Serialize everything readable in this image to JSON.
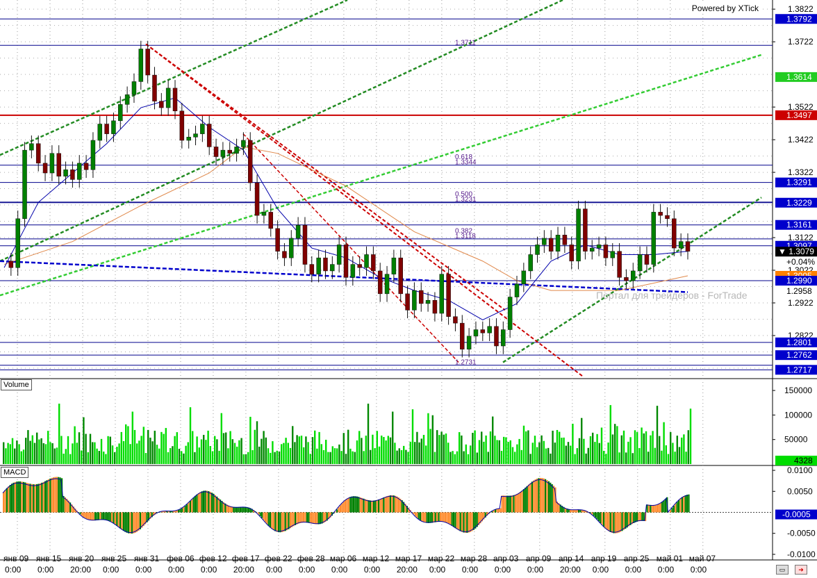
{
  "header": {
    "powered_by": "Powered by XTick",
    "watermark": "Портал для трейдеров - ForTrade"
  },
  "panes": {
    "volume_label": "Volume",
    "macd_label": "MACD"
  },
  "price_axis": {
    "ticks": [
      "1.3822",
      "1.3722",
      "1.3522",
      "1.3422",
      "1.3322",
      "1.3122",
      "1.3022",
      "1.2922",
      "1.2822"
    ],
    "tags": [
      {
        "label": "1.3792",
        "price": 1.3792,
        "kind": "blue"
      },
      {
        "label": "1.3614",
        "price": 1.3614,
        "kind": "green"
      },
      {
        "label": "1.3497",
        "price": 1.3497,
        "kind": "red"
      },
      {
        "label": "1.3291",
        "price": 1.3291,
        "kind": "blue"
      },
      {
        "label": "1.3229",
        "price": 1.3229,
        "kind": "blue"
      },
      {
        "label": "1.3161",
        "price": 1.3161,
        "kind": "blue"
      },
      {
        "label": "1.3097",
        "price": 1.3097,
        "kind": "blue"
      },
      {
        "label": "▼ 1.3079",
        "price": 1.3079,
        "kind": "current"
      },
      {
        "label": "+0.04%",
        "price": 1.3048,
        "kind": "plain"
      },
      {
        "label": "1.3005",
        "price": 1.3005,
        "kind": "orange"
      },
      {
        "label": "1.2990",
        "price": 1.299,
        "kind": "blue"
      },
      {
        "label": "1.2958",
        "price": 1.2958,
        "kind": "plain"
      },
      {
        "label": "1.2801",
        "price": 1.2801,
        "kind": "blue"
      },
      {
        "label": "1.2762",
        "price": 1.2762,
        "kind": "blue"
      },
      {
        "label": "1.2717",
        "price": 1.2717,
        "kind": "blue"
      }
    ]
  },
  "level_annotations": [
    {
      "text": "1.3711",
      "price": 1.3711
    },
    {
      "text": "0.618",
      "price": 1.336
    },
    {
      "text": "1.3344",
      "price": 1.3344
    },
    {
      "text": "0.500",
      "price": 1.3247
    },
    {
      "text": "1.3231",
      "price": 1.3231
    },
    {
      "text": "0.382",
      "price": 1.3134
    },
    {
      "text": "1.3118",
      "price": 1.3118
    },
    {
      "text": "1.2731",
      "price": 1.2731
    }
  ],
  "volume_axis": {
    "ticks": [
      "150000",
      "100000",
      "50000"
    ],
    "last": "4328"
  },
  "macd_axis": {
    "ticks": [
      "0.0100",
      "0.0050",
      "-0.0050",
      "-0.0100"
    ],
    "last": "-0.0005"
  },
  "time_axis": {
    "dates": [
      "янв 09",
      "янв 15",
      "янв 20",
      "янв 25",
      "янв 31",
      "фев 06",
      "фев 12",
      "фев 17",
      "фев 22",
      "фев 28",
      "мар 06",
      "мар 12",
      "мар 17",
      "мар 22",
      "мар 28",
      "апр 03",
      "апр 09",
      "апр 14",
      "апр 19",
      "апр 25",
      "май 01",
      "май 07"
    ],
    "times": [
      "0:00",
      "0:00",
      "20:00",
      "0:00",
      "0:00",
      "0:00",
      "0:00",
      "20:00",
      "0:00",
      "0:00",
      "0:00",
      "0:00",
      "20:00",
      "0:00",
      "0:00",
      "0:00",
      "0:00",
      "20:00",
      "0:00",
      "0:00",
      "0:00",
      "0:00"
    ]
  },
  "colors": {
    "up": "#008000",
    "down": "#800000",
    "hline": "#00008b",
    "redline": "#cc0000",
    "tag_blue": "#0000cc",
    "tag_green": "#22cc22",
    "tag_red": "#cc0000",
    "tag_orange": "#ff8000",
    "vol_green": "#00dd00",
    "vol_dark": "#008800",
    "macd_green": "#008000",
    "macd_orange": "#ff8c2e"
  },
  "chart_data": {
    "type": "candlestick",
    "instrument_quote_precision": 4,
    "y_range": [
      1.269,
      1.385
    ],
    "horizontal_levels": [
      1.3792,
      1.3711,
      1.3497,
      1.3344,
      1.3291,
      1.3231,
      1.3229,
      1.3161,
      1.3118,
      1.3097,
      1.299,
      1.2801,
      1.2762,
      1.2731,
      1.2717
    ],
    "close_path": [
      [
        0,
        1.305
      ],
      [
        1,
        1.303
      ],
      [
        2,
        1.318
      ],
      [
        3,
        1.339
      ],
      [
        4,
        1.341
      ],
      [
        5,
        1.335
      ],
      [
        6,
        1.332
      ],
      [
        7,
        1.338
      ],
      [
        8,
        1.331
      ],
      [
        9,
        1.333
      ],
      [
        10,
        1.33
      ],
      [
        11,
        1.335
      ],
      [
        12,
        1.333
      ],
      [
        13,
        1.342
      ],
      [
        14,
        1.347
      ],
      [
        15,
        1.344
      ],
      [
        16,
        1.348
      ],
      [
        17,
        1.353
      ],
      [
        18,
        1.356
      ],
      [
        19,
        1.36
      ],
      [
        20,
        1.37
      ],
      [
        21,
        1.362
      ],
      [
        22,
        1.354
      ],
      [
        23,
        1.352
      ],
      [
        24,
        1.358
      ],
      [
        25,
        1.351
      ],
      [
        26,
        1.342
      ],
      [
        27,
        1.343
      ],
      [
        28,
        1.344
      ],
      [
        29,
        1.347
      ],
      [
        30,
        1.34
      ],
      [
        31,
        1.337
      ],
      [
        32,
        1.339
      ],
      [
        33,
        1.338
      ],
      [
        34,
        1.34
      ],
      [
        35,
        1.342
      ],
      [
        36,
        1.329
      ],
      [
        37,
        1.319
      ],
      [
        38,
        1.32
      ],
      [
        39,
        1.315
      ],
      [
        40,
        1.308
      ],
      [
        41,
        1.306
      ],
      [
        42,
        1.312
      ],
      [
        43,
        1.316
      ],
      [
        44,
        1.304
      ],
      [
        45,
        1.301
      ],
      [
        46,
        1.306
      ],
      [
        47,
        1.302
      ],
      [
        48,
        1.304
      ],
      [
        49,
        1.31
      ],
      [
        50,
        1.3
      ],
      [
        51,
        1.304
      ],
      [
        52,
        1.303
      ],
      [
        53,
        1.307
      ],
      [
        54,
        1.302
      ],
      [
        55,
        1.295
      ],
      [
        56,
        1.301
      ],
      [
        57,
        1.306
      ],
      [
        58,
        1.295
      ],
      [
        59,
        1.29
      ],
      [
        60,
        1.296
      ],
      [
        61,
        1.292
      ],
      [
        62,
        1.293
      ],
      [
        63,
        1.289
      ],
      [
        64,
        1.301
      ],
      [
        65,
        1.288
      ],
      [
        66,
        1.286
      ],
      [
        67,
        1.278
      ],
      [
        68,
        1.282
      ],
      [
        69,
        1.284
      ],
      [
        70,
        1.283
      ],
      [
        71,
        1.285
      ],
      [
        72,
        1.279
      ],
      [
        73,
        1.284
      ],
      [
        74,
        1.294
      ],
      [
        75,
        1.298
      ],
      [
        76,
        1.302
      ],
      [
        77,
        1.307
      ],
      [
        78,
        1.31
      ],
      [
        79,
        1.312
      ],
      [
        80,
        1.308
      ],
      [
        81,
        1.313
      ],
      [
        82,
        1.31
      ],
      [
        83,
        1.305
      ],
      [
        84,
        1.321
      ],
      [
        85,
        1.308
      ],
      [
        86,
        1.309
      ],
      [
        87,
        1.31
      ],
      [
        88,
        1.306
      ],
      [
        89,
        1.308
      ],
      [
        90,
        1.3
      ],
      [
        91,
        1.299
      ],
      [
        92,
        1.302
      ],
      [
        93,
        1.307
      ],
      [
        94,
        1.304
      ],
      [
        95,
        1.32
      ],
      [
        96,
        1.319
      ],
      [
        97,
        1.318
      ],
      [
        98,
        1.309
      ],
      [
        99,
        1.311
      ],
      [
        100,
        1.308
      ]
    ],
    "ma_fast": [
      [
        0,
        1.303
      ],
      [
        5,
        1.323
      ],
      [
        10,
        1.332
      ],
      [
        15,
        1.341
      ],
      [
        20,
        1.352
      ],
      [
        25,
        1.355
      ],
      [
        30,
        1.346
      ],
      [
        35,
        1.339
      ],
      [
        40,
        1.321
      ],
      [
        45,
        1.309
      ],
      [
        50,
        1.306
      ],
      [
        55,
        1.3
      ],
      [
        60,
        1.296
      ],
      [
        65,
        1.293
      ],
      [
        70,
        1.287
      ],
      [
        75,
        1.292
      ],
      [
        80,
        1.305
      ],
      [
        85,
        1.31
      ],
      [
        90,
        1.307
      ],
      [
        95,
        1.307
      ],
      [
        100,
        1.308
      ]
    ],
    "ma_slow": [
      [
        0,
        1.304
      ],
      [
        10,
        1.311
      ],
      [
        20,
        1.322
      ],
      [
        30,
        1.332
      ],
      [
        35,
        1.34
      ],
      [
        40,
        1.338
      ],
      [
        50,
        1.328
      ],
      [
        60,
        1.314
      ],
      [
        70,
        1.305
      ],
      [
        75,
        1.299
      ],
      [
        80,
        1.296
      ],
      [
        90,
        1.296
      ],
      [
        100,
        1.3005
      ]
    ],
    "volume": {
      "y_range": [
        0,
        160000
      ],
      "last": 4328
    },
    "macd": {
      "y_range": [
        -0.011,
        0.011
      ],
      "last": -0.0005
    },
    "x_labels": [
      "янв 09",
      "янв 15",
      "янв 20",
      "янв 25",
      "янв 31",
      "фев 06",
      "фев 12",
      "фев 17",
      "фев 22",
      "фев 28",
      "мар 06",
      "мар 12",
      "мар 17",
      "мар 22",
      "мар 28",
      "апр 03",
      "апр 09",
      "апр 14",
      "апр 19",
      "апр 25",
      "май 01",
      "май 07"
    ]
  }
}
